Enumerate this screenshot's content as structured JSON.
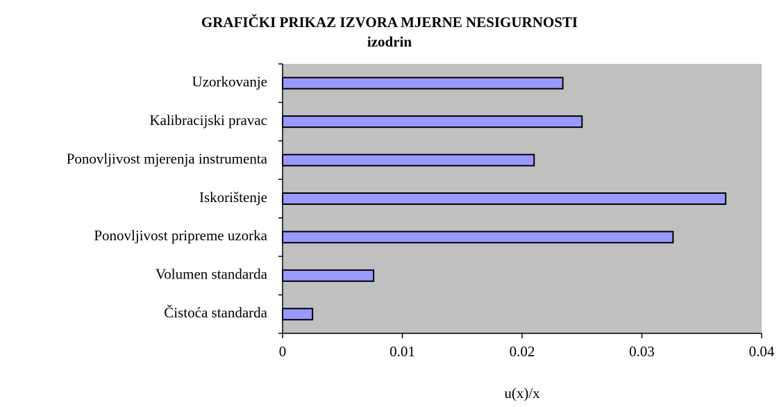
{
  "chart_data": {
    "type": "barh",
    "title": "GRAFIČKI PRIKAZ IZVORA MJERNE NESIGURNOSTI",
    "subtitle": "izodrin",
    "xlabel": "u(x)/x",
    "categories": [
      "Uzorkovanje",
      "Kalibracijski pravac",
      "Ponovljivost mjerenja instrumenta",
      "Iskorištenje",
      "Ponovljivost pripreme uzorka",
      "Volumen standarda",
      "Čistoća standarda"
    ],
    "values": [
      0.0234,
      0.025,
      0.021,
      0.037,
      0.0326,
      0.0076,
      0.0025
    ],
    "color": "#9999ff",
    "plot_background": "#c0c0c0",
    "xlim": [
      0,
      0.04
    ],
    "xticks": [
      0,
      0.01,
      0.02,
      0.03,
      0.04
    ]
  }
}
